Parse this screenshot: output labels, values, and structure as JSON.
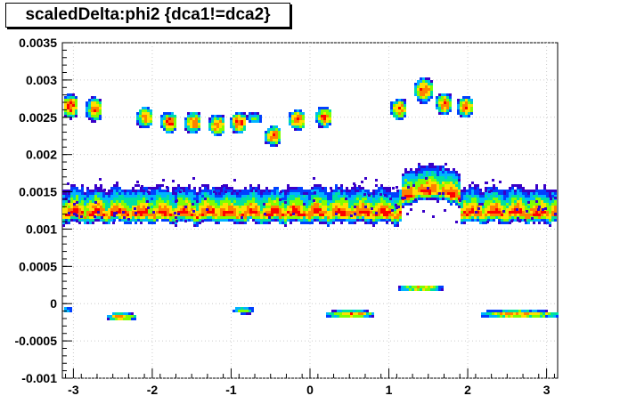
{
  "chart_data": {
    "type": "heatmap",
    "title": "scaledDelta:phi2 {dca1!=dca2}",
    "xlabel": "",
    "ylabel": "",
    "xlim": [
      -3.14,
      3.14
    ],
    "ylim": [
      -0.001,
      0.0035
    ],
    "x_ticks": [
      {
        "value": -3,
        "label": "-3"
      },
      {
        "value": -2,
        "label": "-2"
      },
      {
        "value": -1,
        "label": "-1"
      },
      {
        "value": 0,
        "label": "0"
      },
      {
        "value": 1,
        "label": "1"
      },
      {
        "value": 2,
        "label": "2"
      },
      {
        "value": 3,
        "label": "3"
      }
    ],
    "y_ticks": [
      {
        "value": -0.001,
        "label": "-0.001"
      },
      {
        "value": -0.0005,
        "label": "-0.0005"
      },
      {
        "value": 0,
        "label": "0"
      },
      {
        "value": 0.0005,
        "label": "0.0005"
      },
      {
        "value": 0.001,
        "label": "0.001"
      },
      {
        "value": 0.0015,
        "label": "0.0015"
      },
      {
        "value": 0.002,
        "label": "0.002"
      },
      {
        "value": 0.0025,
        "label": "0.0025"
      },
      {
        "value": 0.003,
        "label": "0.003"
      },
      {
        "value": 0.0035,
        "label": "0.0035"
      }
    ],
    "grid": true,
    "colormap": [
      "#3a00c8",
      "#0040ff",
      "#00b4ff",
      "#00e0a0",
      "#80ff00",
      "#ffe000",
      "#ff8000",
      "#ff0000"
    ],
    "clusters": [
      {
        "x": -3.05,
        "y": 0.00265,
        "w": 0.2,
        "h": 0.00035,
        "peak": 0.9
      },
      {
        "x": -2.73,
        "y": 0.00262,
        "w": 0.2,
        "h": 0.00035,
        "peak": 0.8
      },
      {
        "x": -2.1,
        "y": 0.00252,
        "w": 0.2,
        "h": 0.0003,
        "peak": 0.8
      },
      {
        "x": -1.8,
        "y": 0.00245,
        "w": 0.2,
        "h": 0.0003,
        "peak": 0.9
      },
      {
        "x": -1.5,
        "y": 0.00245,
        "w": 0.2,
        "h": 0.0003,
        "peak": 0.85
      },
      {
        "x": -1.2,
        "y": 0.00242,
        "w": 0.2,
        "h": 0.0003,
        "peak": 0.85
      },
      {
        "x": -0.92,
        "y": 0.00245,
        "w": 0.2,
        "h": 0.0003,
        "peak": 0.9
      },
      {
        "x": -0.72,
        "y": 0.00252,
        "w": 0.18,
        "h": 0.00015,
        "peak": 0.5
      },
      {
        "x": -0.47,
        "y": 0.00225,
        "w": 0.2,
        "h": 0.0003,
        "peak": 0.9
      },
      {
        "x": -0.18,
        "y": 0.00248,
        "w": 0.2,
        "h": 0.0003,
        "peak": 0.85
      },
      {
        "x": 0.16,
        "y": 0.00252,
        "w": 0.2,
        "h": 0.0003,
        "peak": 0.85
      },
      {
        "x": 1.12,
        "y": 0.00262,
        "w": 0.2,
        "h": 0.0003,
        "peak": 0.85
      },
      {
        "x": 1.42,
        "y": 0.00288,
        "w": 0.22,
        "h": 0.00035,
        "peak": 0.9
      },
      {
        "x": 1.7,
        "y": 0.00268,
        "w": 0.2,
        "h": 0.0003,
        "peak": 0.85
      },
      {
        "x": 1.98,
        "y": 0.00265,
        "w": 0.2,
        "h": 0.0003,
        "peak": 0.85
      },
      {
        "x": -2.4,
        "y": -0.00015,
        "w": 0.35,
        "h": 0.00012,
        "peak": 0.8
      },
      {
        "x": -0.85,
        "y": -8e-05,
        "w": 0.25,
        "h": 0.0001,
        "peak": 0.6
      },
      {
        "x": 0.5,
        "y": -0.00012,
        "w": 0.6,
        "h": 0.00012,
        "peak": 0.8
      },
      {
        "x": 1.4,
        "y": 0.00022,
        "w": 0.55,
        "h": 8e-05,
        "peak": 0.8
      },
      {
        "x": 2.65,
        "y": -0.00012,
        "w": 0.95,
        "h": 0.00012,
        "peak": 0.8
      },
      {
        "x": -3.1,
        "y": -5e-05,
        "w": 0.12,
        "h": 8e-05,
        "peak": 0.35
      }
    ]
  }
}
